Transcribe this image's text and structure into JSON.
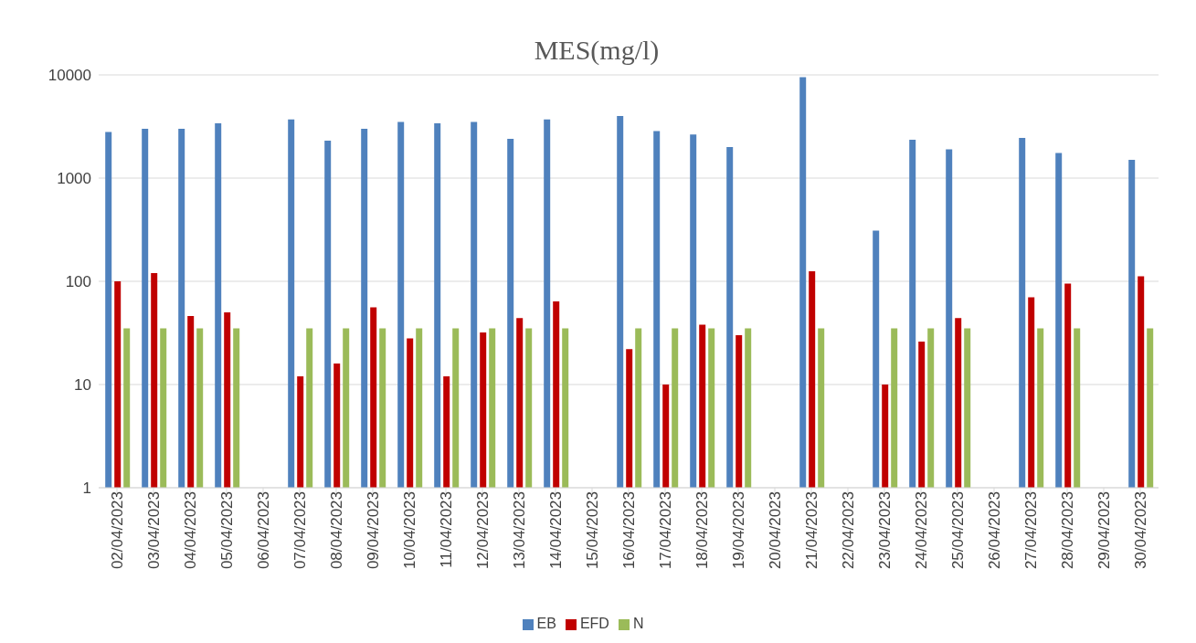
{
  "chart_data": {
    "type": "bar",
    "title": "MES(mg/l)",
    "categories": [
      "02/04/2023",
      "03/04/2023",
      "04/04/2023",
      "05/04/2023",
      "06/04/2023",
      "07/04/2023",
      "08/04/2023",
      "09/04/2023",
      "10/04/2023",
      "11/04/2023",
      "12/04/2023",
      "13/04/2023",
      "14/04/2023",
      "15/04/2023",
      "16/04/2023",
      "17/04/2023",
      "18/04/2023",
      "19/04/2023",
      "20/04/2023",
      "21/04/2023",
      "22/04/2023",
      "23/04/2023",
      "24/04/2023",
      "25/04/2023",
      "26/04/2023",
      "27/04/2023",
      "28/04/2023",
      "29/04/2023",
      "30/04/2023"
    ],
    "series": [
      {
        "name": "EB",
        "color": "#4f81bd",
        "values": [
          2800,
          3000,
          3000,
          3400,
          null,
          3700,
          2300,
          3000,
          3500,
          3400,
          3500,
          2400,
          3700,
          null,
          4000,
          2850,
          2650,
          2000,
          null,
          9500,
          null,
          310,
          2350,
          1900,
          null,
          2450,
          1750,
          null,
          1500
        ]
      },
      {
        "name": "EFD",
        "color": "#c00000",
        "values": [
          100,
          120,
          46,
          50,
          null,
          12,
          16,
          56,
          28,
          12,
          32,
          44,
          64,
          null,
          22,
          10,
          38,
          30,
          null,
          125,
          null,
          10,
          26,
          44,
          null,
          70,
          95,
          null,
          112
        ]
      },
      {
        "name": "N",
        "color": "#9bbb59",
        "values": [
          35,
          35,
          35,
          35,
          null,
          35,
          35,
          35,
          35,
          35,
          35,
          35,
          35,
          null,
          35,
          35,
          35,
          35,
          null,
          35,
          null,
          35,
          35,
          35,
          null,
          35,
          35,
          null,
          35
        ]
      }
    ],
    "log": true,
    "ylim": [
      1,
      10000
    ],
    "yticks": [
      1,
      10,
      100,
      1000,
      10000
    ],
    "grid": "y",
    "legend": "bottom"
  }
}
